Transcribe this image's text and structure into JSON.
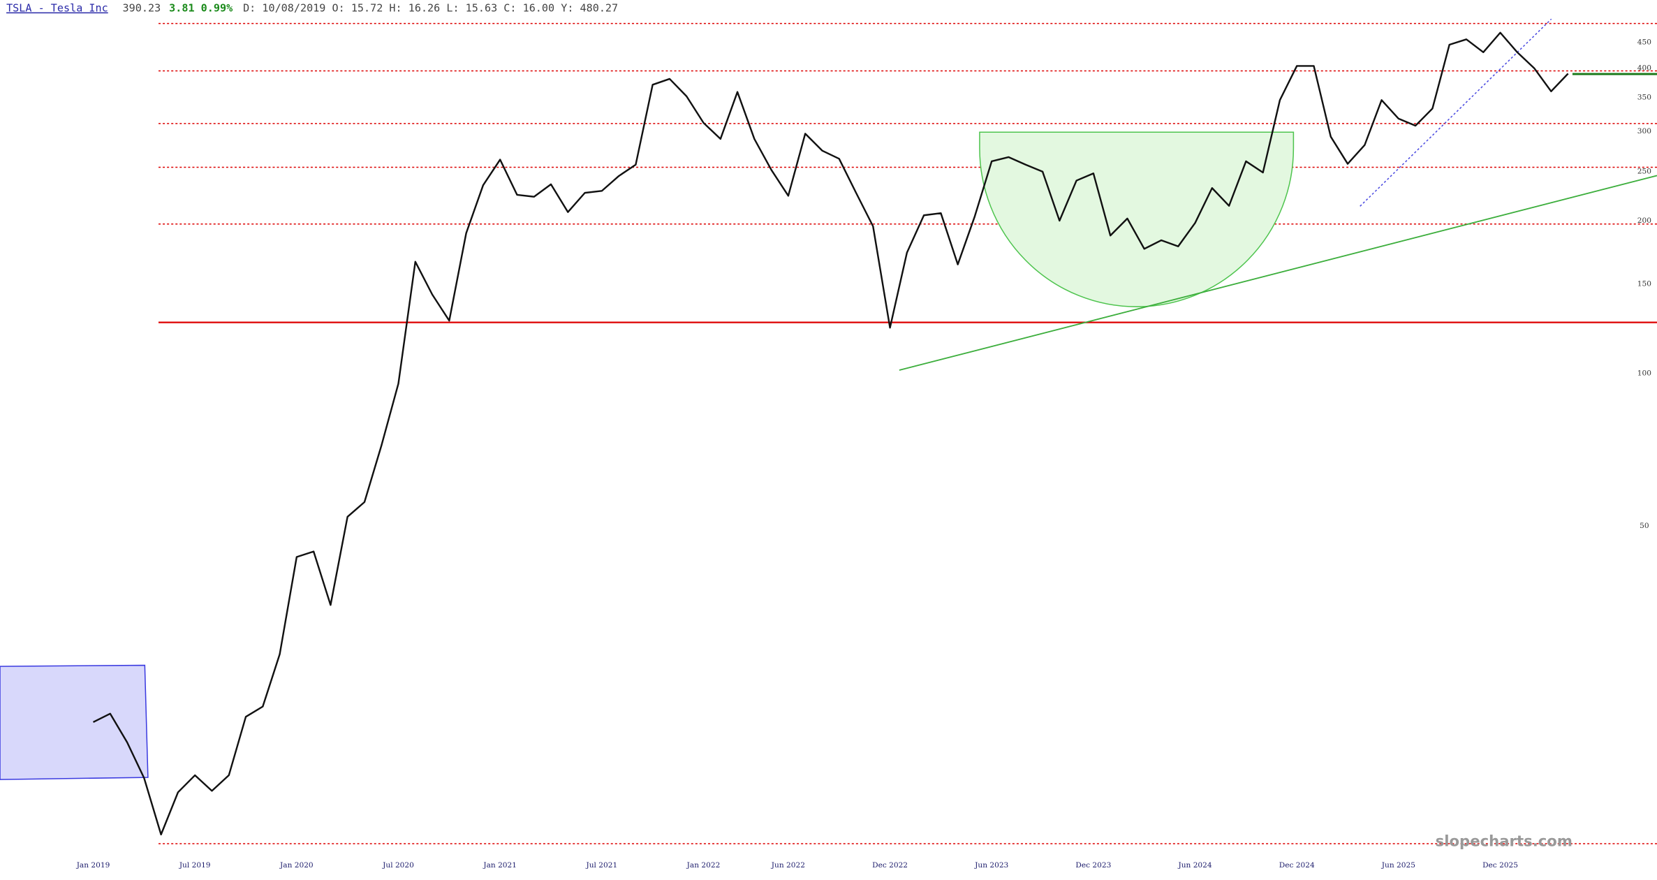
{
  "header": {
    "symbol": "TSLA - Tesla Inc",
    "last": "390.23",
    "change": "3.81 0.99%",
    "ohlc": "D: 10/08/2019 O: 15.72 H: 16.26 L: 15.63 C: 16.00 Y: 480.27"
  },
  "watermark": "slopecharts.com",
  "chart_data": {
    "type": "line",
    "color": "#111111",
    "log_scale": true,
    "x": [
      "2019-01",
      "2019-02",
      "2019-03",
      "2019-04",
      "2019-05",
      "2019-06",
      "2019-07",
      "2019-08",
      "2019-09",
      "2019-10",
      "2019-11",
      "2019-12",
      "2020-01",
      "2020-02",
      "2020-03",
      "2020-04",
      "2020-05",
      "2020-06",
      "2020-07",
      "2020-08",
      "2020-09",
      "2020-10",
      "2020-11",
      "2020-12",
      "2021-01",
      "2021-02",
      "2021-03",
      "2021-04",
      "2021-05",
      "2021-06",
      "2021-07",
      "2021-08",
      "2021-09",
      "2021-10",
      "2021-11",
      "2021-12",
      "2022-01",
      "2022-02",
      "2022-03",
      "2022-04",
      "2022-05",
      "2022-06",
      "2022-07",
      "2022-08",
      "2022-09",
      "2022-10",
      "2022-11",
      "2022-12",
      "2023-01",
      "2023-02",
      "2023-03",
      "2023-04",
      "2023-05",
      "2023-06",
      "2023-07",
      "2023-08",
      "2023-09",
      "2023-10",
      "2023-11",
      "2023-12",
      "2024-01",
      "2024-02",
      "2024-03",
      "2024-04",
      "2024-05",
      "2024-06",
      "2024-07",
      "2024-08",
      "2024-09",
      "2024-10",
      "2024-11",
      "2024-12",
      "2025-01",
      "2025-02",
      "2025-03",
      "2025-04",
      "2025-05",
      "2025-06",
      "2025-07",
      "2025-08",
      "2025-09",
      "2025-10",
      "2025-11",
      "2025-12",
      "2026-01",
      "2026-02",
      "2026-03",
      "2026-04"
    ],
    "values": [
      20.5,
      21.3,
      18.7,
      15.9,
      12.3,
      14.9,
      16.1,
      15.0,
      16.1,
      21.0,
      22.0,
      27.9,
      43.4,
      44.5,
      34.9,
      52.1,
      55.7,
      72.0,
      95.4,
      166,
      143,
      127,
      189,
      235,
      264,
      225,
      223,
      236,
      208,
      227,
      229,
      245,
      258,
      371,
      381,
      352,
      312,
      290,
      359,
      290,
      252,
      224,
      297,
      275,
      265,
      227,
      195,
      123,
      173,
      205,
      207,
      164,
      204,
      262,
      267,
      258,
      250,
      200,
      240,
      248,
      187,
      202,
      176,
      183,
      178,
      198,
      232,
      214,
      262,
      249,
      346,
      404,
      404,
      293,
      259,
      282,
      346,
      318,
      308,
      333,
      445,
      456,
      430,
      470,
      430,
      400,
      360,
      390.23
    ],
    "xlim": [
      "2018-08",
      "2026-07"
    ],
    "xticks": [
      {
        "value": "2019-01",
        "label": "Jan 2019"
      },
      {
        "value": "2019-07",
        "label": "Jul 2019"
      },
      {
        "value": "2020-01",
        "label": "Jan 2020"
      },
      {
        "value": "2020-07",
        "label": "Jul 2020"
      },
      {
        "value": "2021-01",
        "label": "Jan 2021"
      },
      {
        "value": "2021-07",
        "label": "Jul 2021"
      },
      {
        "value": "2022-01",
        "label": "Jan 2022"
      },
      {
        "value": "2022-06",
        "label": "Jun 2022"
      },
      {
        "value": "2022-12",
        "label": "Dec 2022"
      },
      {
        "value": "2023-06",
        "label": "Jun 2023"
      },
      {
        "value": "2023-12",
        "label": "Dec 2023"
      },
      {
        "value": "2024-06",
        "label": "Jun 2024"
      },
      {
        "value": "2024-12",
        "label": "Dec 2024"
      },
      {
        "value": "2025-06",
        "label": "Jun 2025"
      },
      {
        "value": "2025-12",
        "label": "Dec 2025"
      }
    ],
    "ylim": [
      11.5,
      500
    ],
    "yticks": [
      50,
      100,
      150,
      200,
      250,
      300,
      350,
      400,
      450
    ],
    "level_color": "#dd0000",
    "levels": [
      {
        "value": 490,
        "style": "dotted"
      },
      {
        "value": 395,
        "style": "dotted"
      },
      {
        "value": 311,
        "style": "dotted"
      },
      {
        "value": 255,
        "style": "dotted"
      },
      {
        "value": 197,
        "style": "dotted"
      },
      {
        "value": 126,
        "style": "solid"
      },
      {
        "value": 11.8,
        "style": "dotted"
      }
    ]
  }
}
